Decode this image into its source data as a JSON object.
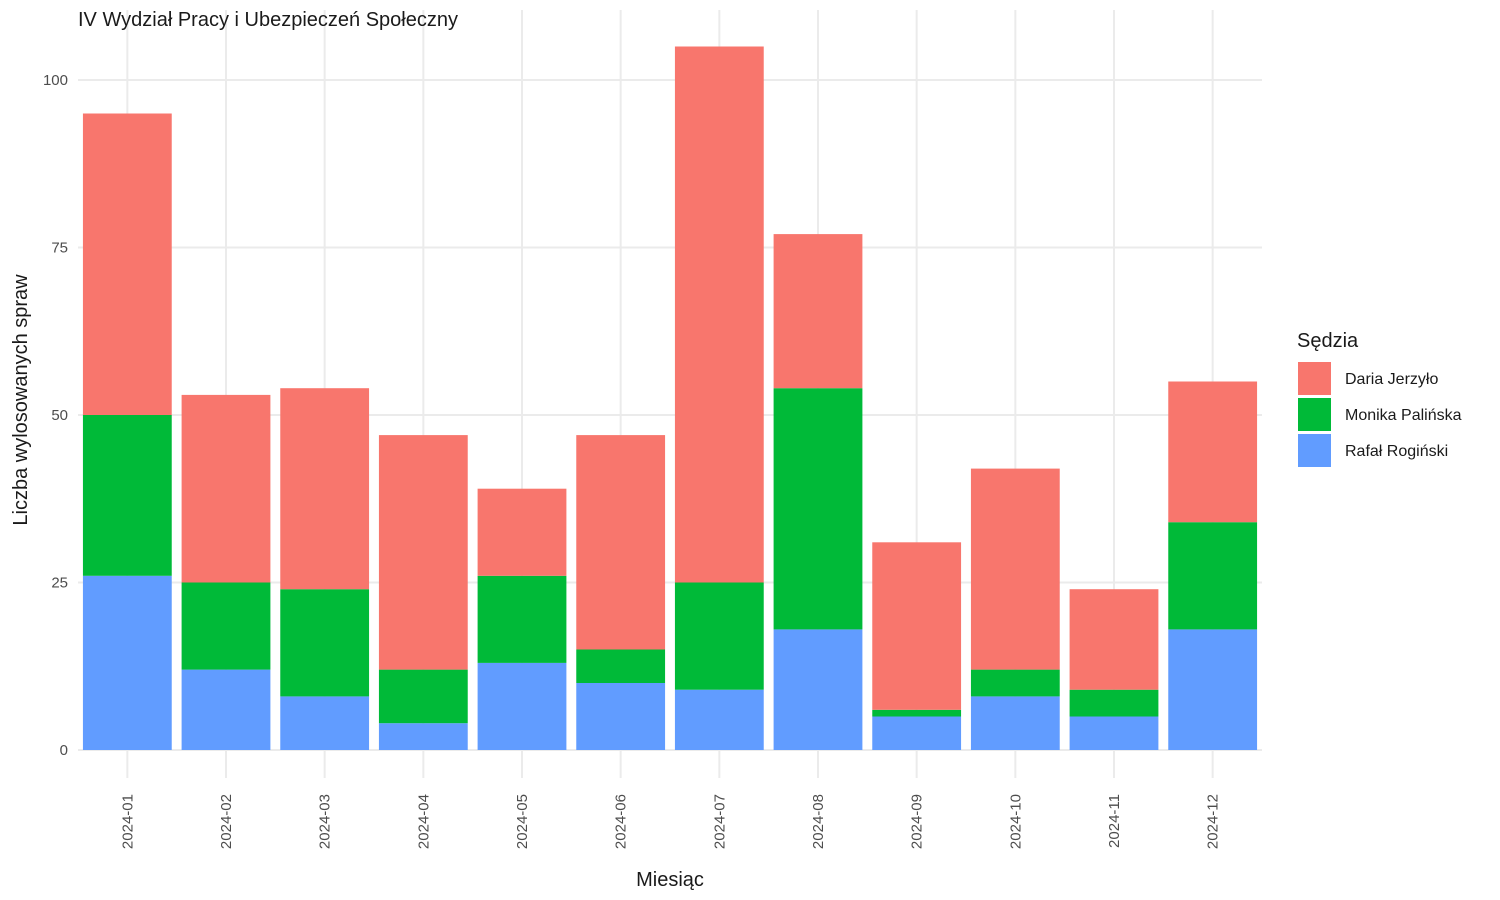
{
  "chart_data": {
    "type": "bar",
    "stacked": true,
    "title": "IV Wydział Pracy i Ubezpieczeń Społeczny",
    "xlabel": "Miesiąc",
    "ylabel": "Liczba wylosowanych spraw",
    "legend_title": "Sędzia",
    "legend_position": "right",
    "grid": true,
    "ylim": [
      0,
      107
    ],
    "yticks": [
      0,
      25,
      50,
      75,
      100
    ],
    "categories": [
      "2024-01",
      "2024-02",
      "2024-03",
      "2024-04",
      "2024-05",
      "2024-06",
      "2024-07",
      "2024-08",
      "2024-09",
      "2024-10",
      "2024-11",
      "2024-12"
    ],
    "series": [
      {
        "name": "Rafał Rogiński",
        "color": "#619CFF",
        "values": [
          26,
          12,
          8,
          4,
          13,
          10,
          9,
          18,
          5,
          8,
          5,
          18
        ]
      },
      {
        "name": "Monika Palińska",
        "color": "#00BA38",
        "values": [
          24,
          13,
          16,
          8,
          13,
          5,
          16,
          36,
          1,
          4,
          4,
          16
        ]
      },
      {
        "name": "Daria Jerzyło",
        "color": "#F8766D",
        "values": [
          45,
          28,
          30,
          35,
          13,
          32,
          80,
          23,
          25,
          30,
          15,
          21
        ]
      }
    ],
    "legend_order": [
      "Daria Jerzyło",
      "Monika Palińska",
      "Rafał Rogiński"
    ]
  }
}
